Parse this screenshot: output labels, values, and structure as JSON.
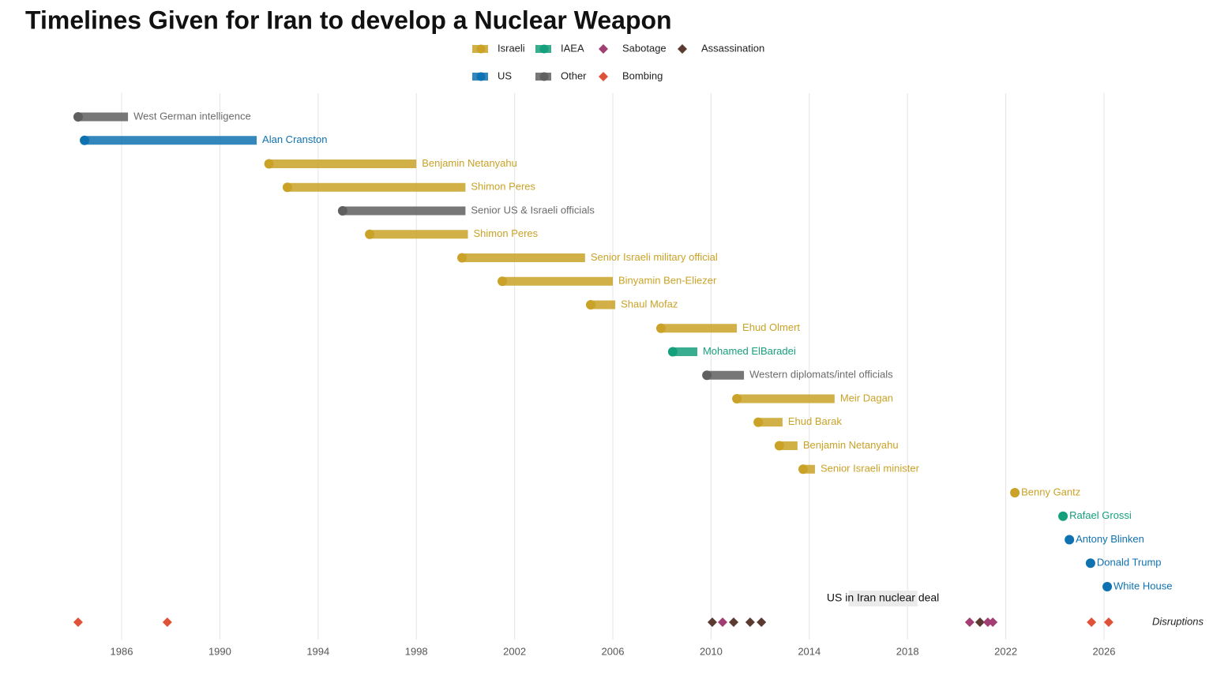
{
  "chart_data": {
    "type": "timeline",
    "title": "Timelines Given for Iran to develop a Nuclear Weapon",
    "xlim": [
      1982,
      2030
    ],
    "xticks": [
      1986,
      1990,
      1994,
      1998,
      2002,
      2006,
      2010,
      2014,
      2018,
      2022,
      2026
    ],
    "grid": true,
    "groups": [
      {
        "name": "Israeli",
        "color": "#c9a227",
        "shape": "bar"
      },
      {
        "name": "IAEA",
        "color": "#159f7c",
        "shape": "bar"
      },
      {
        "name": "Sabotage",
        "color": "#a23e74",
        "shape": "diamond"
      },
      {
        "name": "Assassination",
        "color": "#5b3a32",
        "shape": "diamond"
      },
      {
        "name": "US",
        "color": "#0f72b0",
        "shape": "bar"
      },
      {
        "name": "Other",
        "color": "#5f5f5f",
        "shape": "bar"
      },
      {
        "name": "Bombing",
        "color": "#e05238",
        "shape": "diamond"
      }
    ],
    "rows": [
      {
        "label": "West German intelligence",
        "group": "Other",
        "start": 1984.23,
        "end": 1986.26
      },
      {
        "label": "Alan Cranston",
        "group": "US",
        "start": 1984.49,
        "end": 1991.5
      },
      {
        "label": "Benjamin Netanyahu",
        "group": "Israeli",
        "start": 1992.0,
        "end": 1998.0
      },
      {
        "label": "Shimon Peres",
        "group": "Israeli",
        "start": 1992.75,
        "end": 2000.0
      },
      {
        "label": "Senior US & Israeli officials",
        "group": "Other",
        "start": 1995.0,
        "end": 2000.0
      },
      {
        "label": "Shimon Peres",
        "group": "Israeli",
        "start": 1996.1,
        "end": 2000.1
      },
      {
        "label": "Senior Israeli military official",
        "group": "Israeli",
        "start": 1999.86,
        "end": 2004.87
      },
      {
        "label": "Binyamin Ben-Eliezer",
        "group": "Israeli",
        "start": 2001.5,
        "end": 2006.0
      },
      {
        "label": "Shaul Mofaz",
        "group": "Israeli",
        "start": 2005.1,
        "end": 2006.1
      },
      {
        "label": "Ehud Olmert",
        "group": "Israeli",
        "start": 2007.96,
        "end": 2011.05
      },
      {
        "label": "Mohamed ElBaradei",
        "group": "IAEA",
        "start": 2008.44,
        "end": 2009.44
      },
      {
        "label": "Western diplomats/intel officials",
        "group": "Other",
        "start": 2009.83,
        "end": 2011.34
      },
      {
        "label": "Meir Dagan",
        "group": "Israeli",
        "start": 2011.05,
        "end": 2015.03
      },
      {
        "label": "Ehud Barak",
        "group": "Israeli",
        "start": 2011.92,
        "end": 2012.91
      },
      {
        "label": "Benjamin Netanyahu",
        "group": "Israeli",
        "start": 2012.78,
        "end": 2013.52
      },
      {
        "label": "Senior Israeli minister",
        "group": "Israeli",
        "start": 2013.75,
        "end": 2014.23
      },
      {
        "label": "Benny Gantz",
        "group": "Israeli",
        "start": 2022.37,
        "end": null
      },
      {
        "label": "Rafael Grossi",
        "group": "IAEA",
        "start": 2024.33,
        "end": null
      },
      {
        "label": "Antony Blinken",
        "group": "US",
        "start": 2024.59,
        "end": null
      },
      {
        "label": "Donald Trump",
        "group": "US",
        "start": 2025.45,
        "end": null
      },
      {
        "label": "White House",
        "group": "US",
        "start": 2026.13,
        "end": null
      }
    ],
    "disruptions_label": "Disruptions",
    "disruptions": [
      {
        "group": "Bombing",
        "x": 1984.23
      },
      {
        "group": "Bombing",
        "x": 1987.86
      },
      {
        "group": "Assassination",
        "x": 2010.05
      },
      {
        "group": "Sabotage",
        "x": 2010.47
      },
      {
        "group": "Assassination",
        "x": 2010.92
      },
      {
        "group": "Assassination",
        "x": 2011.59
      },
      {
        "group": "Assassination",
        "x": 2012.05
      },
      {
        "group": "Sabotage",
        "x": 2020.53
      },
      {
        "group": "Assassination",
        "x": 2020.95
      },
      {
        "group": "Sabotage",
        "x": 2021.27
      },
      {
        "group": "Sabotage",
        "x": 2021.47
      },
      {
        "group": "Bombing",
        "x": 2025.49
      },
      {
        "group": "Bombing",
        "x": 2026.19
      }
    ],
    "annotation": {
      "text": "US in Iran nuclear deal",
      "start": 2015.6,
      "end": 2018.4
    }
  }
}
